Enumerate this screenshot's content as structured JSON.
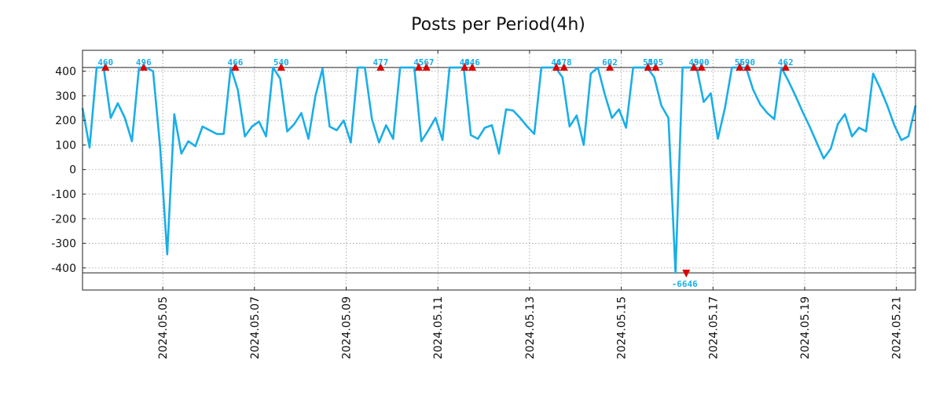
{
  "chart_data": {
    "type": "line",
    "title": "Posts per Period(4h)",
    "xlabel": "",
    "ylabel": "",
    "ylim": [
      -490,
      485
    ],
    "yticks": [
      400,
      300,
      200,
      100,
      0,
      -100,
      -200,
      -300,
      -400
    ],
    "ytick_labels": [
      "400",
      "300",
      "200",
      "100",
      "0",
      "-100",
      "-200",
      "-300",
      "-400"
    ],
    "xlim_index": [
      0,
      109
    ],
    "xticks": [
      {
        "index": 10.5,
        "label": "2024.05.05"
      },
      {
        "index": 22.5,
        "label": "2024.05.07"
      },
      {
        "index": 34.5,
        "label": "2024.05.09"
      },
      {
        "index": 46.5,
        "label": "2024.05.11"
      },
      {
        "index": 58.5,
        "label": "2024.05.13"
      },
      {
        "index": 70.5,
        "label": "2024.05.15"
      },
      {
        "index": 82.5,
        "label": "2024.05.17"
      },
      {
        "index": 94.5,
        "label": "2024.05.19"
      },
      {
        "index": 106.5,
        "label": "2024.05.21"
      }
    ],
    "clip_upper": 415,
    "clip_lower": -420,
    "grid": true,
    "colors": {
      "line": "#1aaee8",
      "marker": "#dd0000",
      "label": "#1aaee8",
      "grid": "#999999"
    },
    "series": [
      {
        "name": "posts",
        "values": [
          250,
          90,
          415,
          415,
          210,
          270,
          210,
          115,
          415,
          415,
          400,
          90,
          -345,
          225,
          65,
          115,
          95,
          175,
          160,
          145,
          145,
          415,
          325,
          135,
          175,
          195,
          135,
          415,
          370,
          155,
          185,
          230,
          125,
          300,
          410,
          175,
          160,
          200,
          110,
          415,
          415,
          205,
          110,
          180,
          125,
          415,
          415,
          415,
          115,
          160,
          210,
          120,
          415,
          415,
          415,
          140,
          125,
          170,
          180,
          65,
          245,
          240,
          210,
          175,
          145,
          415,
          415,
          415,
          375,
          175,
          220,
          100,
          390,
          415,
          305,
          210,
          245,
          170,
          415,
          415,
          415,
          375,
          260,
          210,
          -420,
          415,
          415,
          415,
          275,
          310,
          125,
          250,
          415,
          415,
          415,
          325,
          265,
          230,
          205,
          415,
          360,
          300,
          235,
          175,
          110,
          45,
          85,
          185,
          225,
          135,
          170,
          155,
          390,
          330,
          260,
          180,
          120,
          135,
          260
        ]
      }
    ],
    "peaks": [
      {
        "index": 3,
        "label": "460",
        "direction": "up"
      },
      {
        "index": 8,
        "label": "496",
        "direction": "up"
      },
      {
        "index": 20,
        "label": "466",
        "direction": "up"
      },
      {
        "index": 26,
        "label": "540",
        "direction": "up"
      },
      {
        "index": 39,
        "label": "477",
        "direction": "up"
      },
      {
        "index": 44,
        "label": "45",
        "direction": "up"
      },
      {
        "index": 45,
        "label": "567",
        "direction": "up"
      },
      {
        "index": 50,
        "label": "49",
        "direction": "up"
      },
      {
        "index": 51,
        "label": "446",
        "direction": "up"
      },
      {
        "index": 62,
        "label": "46",
        "direction": "up"
      },
      {
        "index": 63,
        "label": "478",
        "direction": "up"
      },
      {
        "index": 69,
        "label": "602",
        "direction": "up"
      },
      {
        "index": 74,
        "label": "54",
        "direction": "up"
      },
      {
        "index": 75,
        "label": "505",
        "direction": "up"
      },
      {
        "index": 79,
        "label": "-6646",
        "direction": "down"
      },
      {
        "index": 80,
        "label": "49",
        "direction": "up"
      },
      {
        "index": 81,
        "label": "500",
        "direction": "up"
      },
      {
        "index": 86,
        "label": "56",
        "direction": "up"
      },
      {
        "index": 87,
        "label": "590",
        "direction": "up"
      },
      {
        "index": 92,
        "label": "462",
        "direction": "up"
      }
    ]
  }
}
